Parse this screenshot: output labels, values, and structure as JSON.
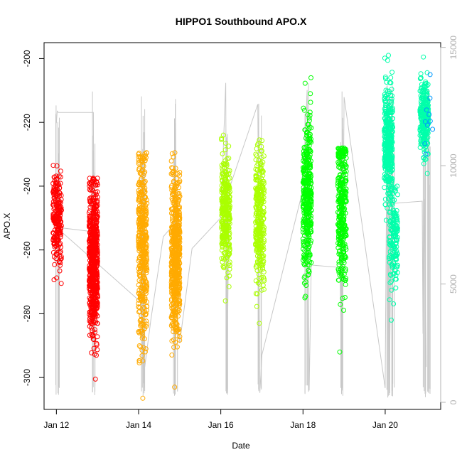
{
  "chart_data": {
    "type": "scatter",
    "title": "HIPPO1 Southbound APO.X",
    "xlabel": "Date",
    "ylabel": "APO.X",
    "x_ticks": [
      "Jan 12",
      "Jan 14",
      "Jan 16",
      "Jan 18",
      "Jan 20"
    ],
    "x_tick_days": [
      12,
      14,
      16,
      18,
      20
    ],
    "xlim": [
      11.7,
      21.35
    ],
    "ylim": [
      -310,
      -195
    ],
    "y_ticks": [
      -300,
      -280,
      -260,
      -240,
      -220,
      -200
    ],
    "y2_ticks": [
      0,
      5000,
      10000,
      15000
    ],
    "y2lim": [
      -300,
      15200
    ],
    "y2_color": "#b3b3b3",
    "grid": false,
    "legend": "none",
    "clusters": [
      {
        "day": 12.02,
        "ymin": -270.5,
        "ymax": -233.5,
        "ycenter": -250,
        "color": "#ff0000",
        "n": 220
      },
      {
        "day": 12.9,
        "ymin": -300.5,
        "ymax": -237.5,
        "ycenter": -263,
        "color": "#ff0000",
        "n": 650
      },
      {
        "day": 14.1,
        "ymin": -306.5,
        "ymax": -229.5,
        "ycenter": -258,
        "color": "#ffaa00",
        "n": 420
      },
      {
        "day": 14.9,
        "ymin": -303.0,
        "ymax": -229.5,
        "ycenter": -262,
        "color": "#ffaa00",
        "n": 560
      },
      {
        "day": 16.12,
        "ymin": -276.0,
        "ymax": -224.0,
        "ycenter": -248,
        "color": "#aaff00",
        "n": 320
      },
      {
        "day": 16.95,
        "ymin": -283.0,
        "ymax": -225.5,
        "ycenter": -250,
        "color": "#aaff00",
        "n": 300
      },
      {
        "day": 18.1,
        "ymin": -275.0,
        "ymax": -206.0,
        "ycenter": -243,
        "color": "#00ff00",
        "n": 380
      },
      {
        "day": 18.95,
        "ymin": -292.0,
        "ymax": -228.0,
        "ycenter": -245,
        "color": "#00ff00",
        "n": 340
      },
      {
        "day": 20.08,
        "ymin": -254.0,
        "ymax": -199.0,
        "ycenter": -226,
        "color": "#00ffaa",
        "n": 380
      },
      {
        "day": 20.2,
        "ymin": -282.0,
        "ymax": -240.0,
        "ycenter": -256,
        "color": "#00ffaa",
        "n": 160
      },
      {
        "day": 20.95,
        "ymin": -236.0,
        "ymax": -199.5,
        "ycenter": -218,
        "color": "#00ffaa",
        "n": 260
      },
      {
        "day": 21.05,
        "ymin": -230.0,
        "ymax": -205.0,
        "ycenter": -220,
        "color": "#0099ff",
        "n": 10
      }
    ],
    "altitude_path": [
      [
        12.0,
        11800
      ],
      [
        12.02,
        12300
      ],
      [
        12.05,
        12250
      ],
      [
        12.9,
        12250
      ],
      [
        12.92,
        2000
      ],
      [
        12.95,
        8000
      ],
      [
        12.93,
        7200
      ],
      [
        12.0,
        7400
      ],
      [
        14.08,
        4200
      ],
      [
        14.12,
        800
      ],
      [
        14.1,
        10700
      ],
      [
        14.05,
        3800
      ],
      [
        14.15,
        1500
      ],
      [
        14.3,
        3500
      ],
      [
        14.6,
        7000
      ],
      [
        14.85,
        7500
      ],
      [
        14.88,
        1000
      ],
      [
        14.9,
        11800
      ],
      [
        14.93,
        4000
      ],
      [
        15.0,
        2500
      ],
      [
        15.3,
        6500
      ],
      [
        16.0,
        7800
      ],
      [
        16.12,
        13500
      ],
      [
        16.15,
        400
      ],
      [
        16.2,
        9000
      ],
      [
        16.9,
        12600
      ],
      [
        16.95,
        400
      ],
      [
        17.0,
        2000
      ],
      [
        18.0,
        9000
      ],
      [
        18.1,
        13200
      ],
      [
        18.15,
        500
      ],
      [
        18.2,
        5800
      ],
      [
        18.9,
        5700
      ],
      [
        18.95,
        500
      ],
      [
        19.0,
        12900
      ],
      [
        20.0,
        600
      ],
      [
        20.05,
        13400
      ],
      [
        20.1,
        300
      ],
      [
        20.15,
        8400
      ],
      [
        20.9,
        8500
      ],
      [
        20.92,
        2900
      ],
      [
        20.95,
        8600
      ],
      [
        21.0,
        1500
      ]
    ]
  }
}
